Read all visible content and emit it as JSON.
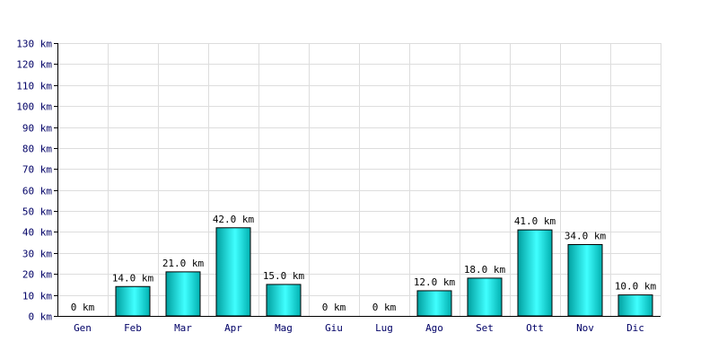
{
  "chart_data": {
    "type": "bar",
    "categories": [
      "Gen",
      "Feb",
      "Mar",
      "Apr",
      "Mag",
      "Giu",
      "Lug",
      "Ago",
      "Set",
      "Ott",
      "Nov",
      "Dic"
    ],
    "values": [
      0,
      14,
      21,
      42,
      15,
      0,
      0,
      12,
      18,
      41,
      34,
      10
    ],
    "value_labels": [
      "0 km",
      "14.0 km",
      "21.0 km",
      "42.0 km",
      "15.0 km",
      "0 km",
      "0 km",
      "12.0 km",
      "18.0 km",
      "41.0 km",
      "34.0 km",
      "10.0 km"
    ],
    "y_ticks": [
      0,
      10,
      20,
      30,
      40,
      50,
      60,
      70,
      80,
      90,
      100,
      110,
      120,
      130
    ],
    "y_tick_labels": [
      "0 km",
      "10 km",
      "20 km",
      "30 km",
      "40 km",
      "50 km",
      "60 km",
      "70 km",
      "80 km",
      "90 km",
      "100 km",
      "110 km",
      "120 km",
      "130 km"
    ],
    "ylim": [
      0,
      130
    ],
    "grid": true,
    "title": "",
    "xlabel": "",
    "ylabel": "",
    "colors": {
      "bar_light": "#40ffff",
      "bar_dark": "#00a0a0",
      "bar_stroke": "#000000",
      "grid": "#dddddd",
      "axis": "#000000",
      "text": "#000066"
    }
  }
}
